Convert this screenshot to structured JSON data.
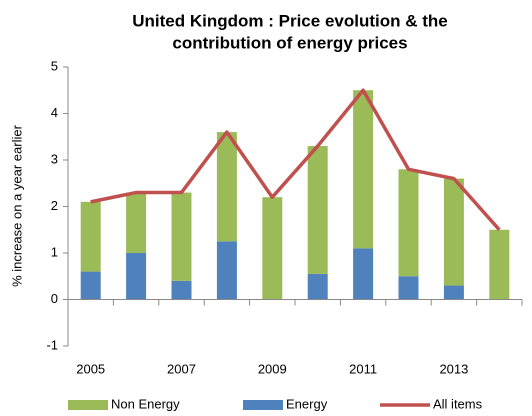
{
  "chart_data": {
    "type": "bar",
    "title": [
      "United Kingdom : Price evolution & the",
      "contribution of energy prices"
    ],
    "y_label": "% increase on a year earlier",
    "categories": [
      "2005",
      null,
      "2007",
      null,
      "2009",
      null,
      "2011",
      null,
      "2013",
      null
    ],
    "series": [
      {
        "name": "Non Energy",
        "type": "bar",
        "color": "#9bbb59",
        "values": [
          1.5,
          1.3,
          1.9,
          2.35,
          2.2,
          2.75,
          3.4,
          2.3,
          2.3,
          1.5
        ]
      },
      {
        "name": "Energy",
        "type": "bar",
        "color": "#4f81bd",
        "values": [
          0.6,
          1.0,
          0.4,
          1.25,
          0,
          0.55,
          1.1,
          0.5,
          0.3,
          0
        ]
      },
      {
        "name": "All items",
        "type": "line",
        "color": "#c0504d",
        "values": [
          2.1,
          2.3,
          2.3,
          3.6,
          2.2,
          3.3,
          4.5,
          2.8,
          2.6,
          1.5
        ]
      }
    ],
    "ylim": [
      -1,
      5
    ],
    "yticks": [
      -1,
      0,
      1,
      2,
      3,
      4,
      5
    ],
    "grid": false,
    "legend": "bottom"
  }
}
